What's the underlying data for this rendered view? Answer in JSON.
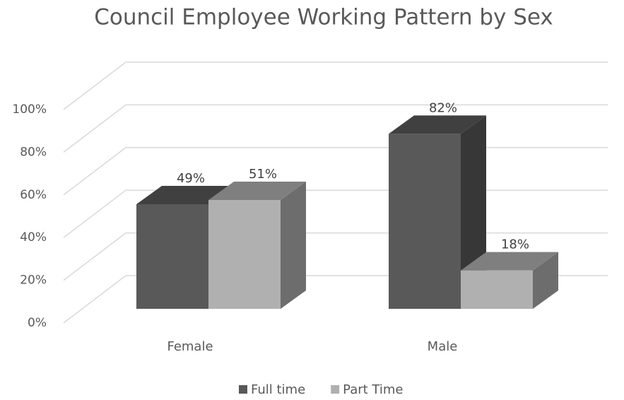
{
  "chart_data": {
    "type": "bar3d",
    "title": "Council Employee Working Pattern by Sex",
    "categories": [
      "Female",
      "Male"
    ],
    "series": [
      {
        "name": "Full time",
        "color": "#595959",
        "values": [
          49,
          82
        ],
        "value_labels": [
          "49%",
          "82%"
        ]
      },
      {
        "name": "Part Time",
        "color": "#b0b0b0",
        "values": [
          51,
          18
        ],
        "value_labels": [
          "51%",
          "18%"
        ]
      }
    ],
    "ylim": [
      0,
      100
    ],
    "yticks": [
      {
        "value": 0,
        "label": "0%"
      },
      {
        "value": 20,
        "label": "20%"
      },
      {
        "value": 40,
        "label": "40%"
      },
      {
        "value": 60,
        "label": "60%"
      },
      {
        "value": 80,
        "label": "80%"
      },
      {
        "value": 100,
        "label": "100%"
      }
    ],
    "grid": true,
    "legend": "bottom"
  }
}
